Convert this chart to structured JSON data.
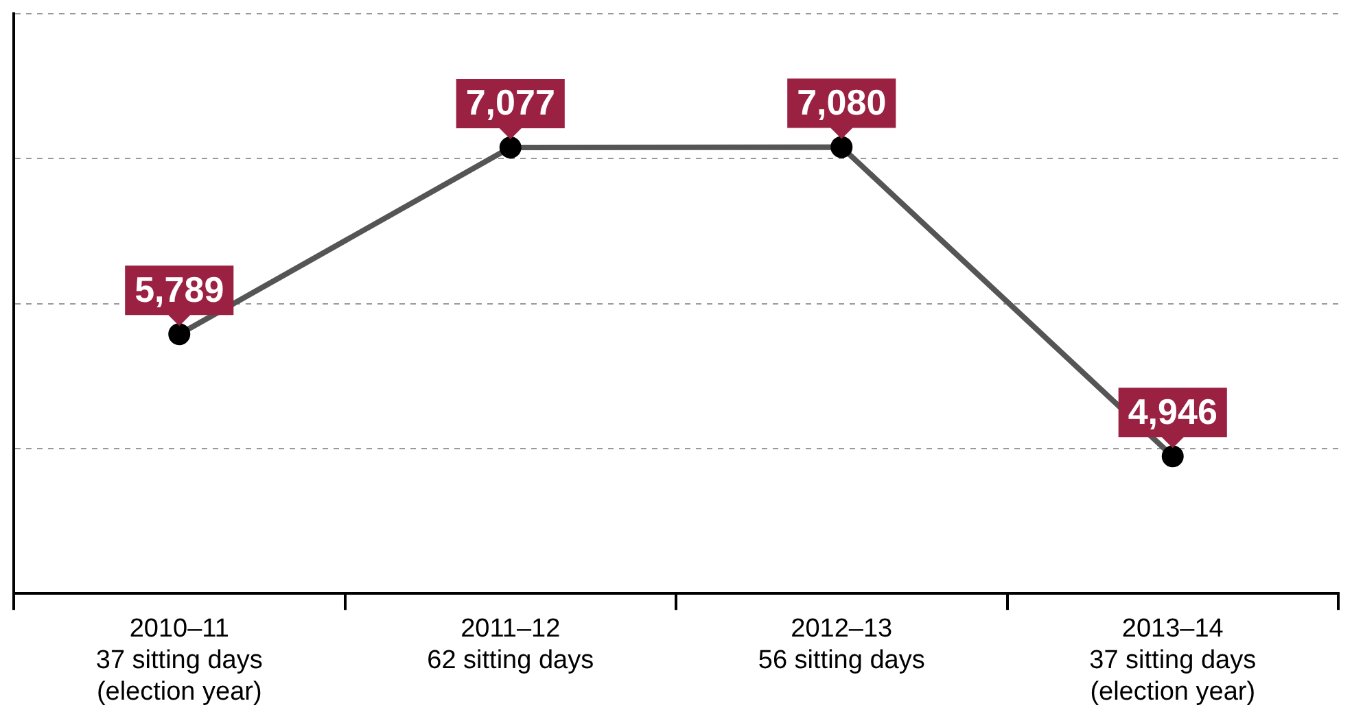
{
  "chart_data": {
    "type": "line",
    "categories": [
      "2010–11\n37 sitting days\n(election year)",
      "2011–12\n62 sitting days",
      "2012–13\n56 sitting days",
      "2013–14\n37 sitting days\n(election year)"
    ],
    "series": [
      {
        "color": "#555555",
        "values": [
          5789,
          7077,
          7080,
          4946
        ],
        "value_labels": [
          "5,789",
          "7,077",
          "7,080",
          "4,946"
        ]
      }
    ],
    "grid": "y",
    "marker": "circle",
    "line_style": "solid",
    "legend": false
  }
}
